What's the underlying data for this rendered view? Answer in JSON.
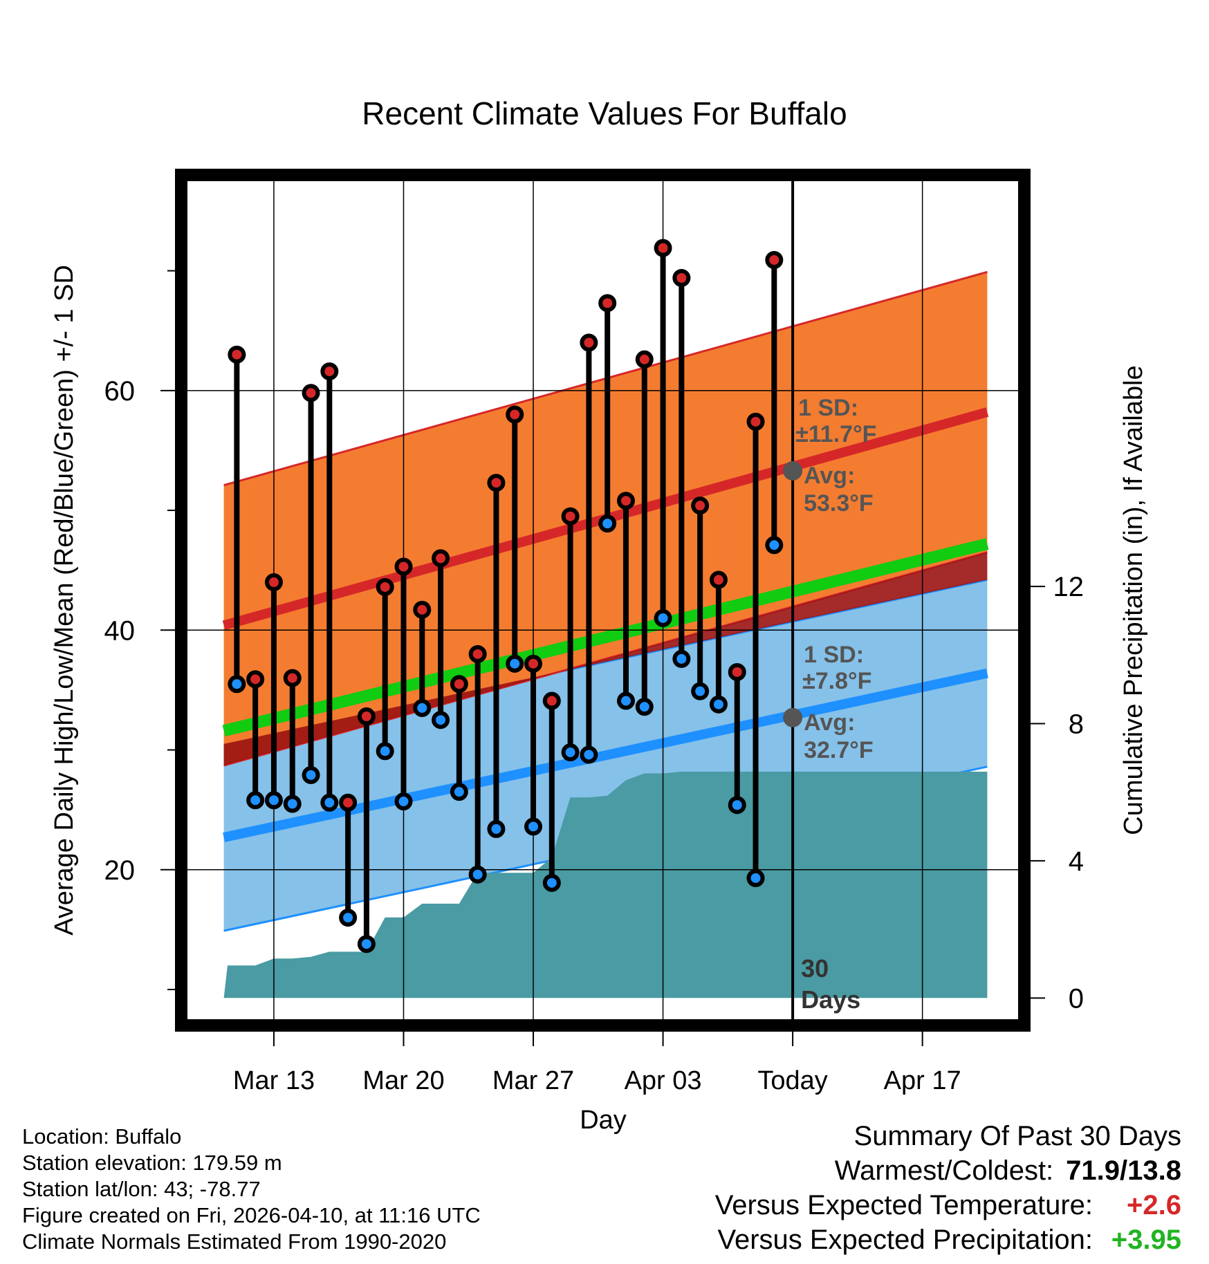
{
  "chart_data": {
    "type": "line",
    "title": "Recent Climate Values For Buffalo",
    "xlabel": "Day",
    "ylabel": "Average Daily High/Low/Mean (Red/Blue/Green) +/- 1 SD",
    "y2label": "Cumulative Precipitation (in), If Available",
    "xlim": [
      -5,
      40.5
    ],
    "ylim": [
      7,
      78
    ],
    "y2lim": [
      -0.8,
      24
    ],
    "x_ticks": [
      {
        "x": 0,
        "label": "Mar 13"
      },
      {
        "x": 7,
        "label": "Mar 20"
      },
      {
        "x": 14,
        "label": "Mar 27"
      },
      {
        "x": 21,
        "label": "Apr 03"
      },
      {
        "x": 28,
        "label": "Today"
      },
      {
        "x": 35,
        "label": "Apr 17"
      }
    ],
    "y_ticks": [
      20,
      40,
      60
    ],
    "y_minor_ticks": [
      10,
      30,
      50,
      70
    ],
    "y2_ticks": [
      0,
      4,
      8,
      12
    ],
    "grid": true,
    "today_x": 28,
    "today_label": [
      "30",
      "Days"
    ],
    "normals": {
      "x_range": [
        -2.7,
        38.5
      ],
      "high_mean": [
        40.4,
        58.2
      ],
      "high_sd": 11.7,
      "low_mean": [
        22.7,
        36.4
      ],
      "low_sd": 7.8,
      "mean_line": [
        31.6,
        47.2
      ]
    },
    "annotations": {
      "high": {
        "sd_label": "1 SD:",
        "sd_value": "±11.7°F",
        "avg_label": "Avg:",
        "avg_value": "53.3°F",
        "avg": 53.3
      },
      "low": {
        "sd_label": "1 SD:",
        "sd_value": "±7.8°F",
        "avg_label": "Avg:",
        "avg_value": "32.7°F",
        "avg": 32.7
      }
    },
    "days": [
      -2,
      -1,
      0,
      1,
      2,
      3,
      4,
      5,
      6,
      7,
      8,
      9,
      10,
      11,
      12,
      13,
      14,
      15,
      16,
      17,
      18,
      19,
      20,
      21,
      22,
      23,
      24,
      25,
      26,
      27
    ],
    "series": [
      {
        "name": "Daily High",
        "color": "#d62728",
        "values": [
          63.0,
          35.9,
          44.0,
          36.0,
          59.8,
          61.6,
          25.6,
          32.8,
          43.6,
          45.3,
          41.7,
          46.0,
          35.5,
          38.0,
          52.3,
          58.0,
          37.2,
          34.1,
          49.5,
          64.0,
          67.3,
          50.8,
          62.6,
          71.9,
          69.4,
          50.4,
          44.2,
          36.5,
          57.4,
          70.9
        ]
      },
      {
        "name": "Daily Low",
        "color": "#1e90ff",
        "values": [
          35.5,
          25.8,
          25.8,
          25.5,
          27.9,
          25.6,
          16.0,
          13.8,
          29.9,
          25.7,
          33.5,
          32.5,
          26.5,
          19.6,
          23.4,
          37.2,
          23.6,
          18.9,
          29.8,
          29.6,
          48.9,
          34.1,
          33.6,
          41.0,
          37.6,
          34.9,
          33.8,
          25.4,
          19.3,
          47.1
        ]
      }
    ],
    "precipitation": {
      "name": "Cumulative Precipitation",
      "color": "#4a9ba3",
      "values": [
        0.95,
        0.95,
        1.15,
        1.15,
        1.2,
        1.35,
        1.35,
        1.35,
        2.35,
        2.35,
        2.75,
        2.75,
        2.75,
        3.65,
        3.65,
        3.65,
        3.65,
        4.1,
        5.85,
        5.85,
        5.9,
        6.35,
        6.55,
        6.55,
        6.6,
        6.6,
        6.6,
        6.6,
        6.6,
        6.6
      ],
      "extend_to_x": 38.5
    }
  },
  "info": {
    "location": "Location: Buffalo",
    "elevation": "Station elevation: 179.59 m",
    "latlon": "Station lat/lon: 43; -78.77",
    "created": "Figure created on Fri, 2026-04-10, at 11:16 UTC",
    "normals_source": "Climate Normals Estimated From 1990-2020"
  },
  "summary": {
    "title": "Summary Of Past 30 Days",
    "warm_cold_label": "Warmest/Coldest:",
    "warm_cold_value": "71.9/13.8",
    "temp_label": "Versus Expected Temperature:",
    "temp_value": "+2.6",
    "temp_color": "#d62728",
    "precip_label": "Versus Expected Precipitation:",
    "precip_value": "+3.95",
    "precip_color": "#22b322"
  },
  "colors": {
    "high_band": "#f47c30",
    "high_line": "#d62728",
    "low_band": "#85c1e9",
    "low_line": "#1e90ff",
    "mean_line": "#11cc11",
    "precip": "#4a9ba3",
    "annotation": "#555555"
  }
}
